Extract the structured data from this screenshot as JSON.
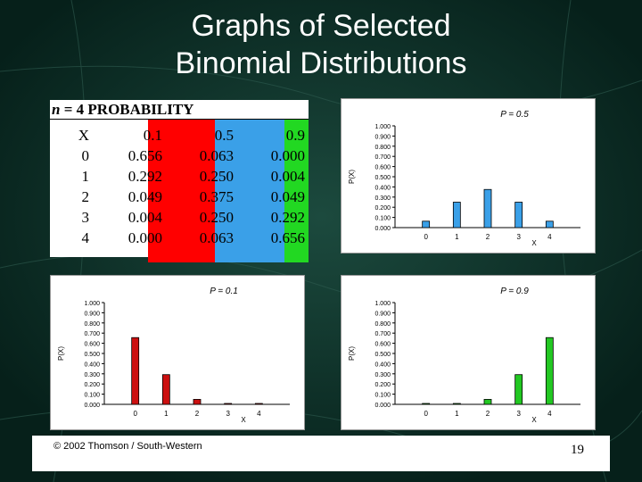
{
  "slide": {
    "title_line1": "Graphs of Selected",
    "title_line2": "Binomial Distributions",
    "footer": "© 2002 Thomson / South-Western",
    "page_number": "19"
  },
  "table": {
    "header_n": "n",
    "header_rest": " = 4 PROBABILITY",
    "columns": [
      "X",
      "0.1",
      "0.5",
      "0.9"
    ],
    "rows": [
      [
        "0",
        "0.656",
        "0.063",
        "0.000"
      ],
      [
        "1",
        "0.292",
        "0.250",
        "0.004"
      ],
      [
        "2",
        "0.049",
        "0.375",
        "0.049"
      ],
      [
        "3",
        "0.004",
        "0.250",
        "0.292"
      ],
      [
        "4",
        "0.000",
        "0.063",
        "0.656"
      ]
    ],
    "band_colors": [
      "#ff0000",
      "#3aa0e8",
      "#22d822"
    ]
  },
  "chart_data": [
    {
      "type": "bar",
      "title": "P = 0.5",
      "xlabel": "X",
      "ylabel": "P(X)",
      "categories": [
        "0",
        "1",
        "2",
        "3",
        "4"
      ],
      "values": [
        0.063,
        0.25,
        0.375,
        0.25,
        0.063
      ],
      "ylim": [
        0,
        1
      ],
      "yticks": [
        "0.000",
        "0.100",
        "0.200",
        "0.300",
        "0.400",
        "0.500",
        "0.600",
        "0.700",
        "0.800",
        "0.900",
        "1.000"
      ],
      "color": "#3aa0e8"
    },
    {
      "type": "bar",
      "title": "P = 0.1",
      "xlabel": "X",
      "ylabel": "P(X)",
      "categories": [
        "0",
        "1",
        "2",
        "3",
        "4"
      ],
      "values": [
        0.656,
        0.292,
        0.049,
        0.004,
        0.0
      ],
      "ylim": [
        0,
        1
      ],
      "yticks": [
        "0.000",
        "0.100",
        "0.200",
        "0.300",
        "0.400",
        "0.500",
        "0.600",
        "0.700",
        "0.800",
        "0.900",
        "1.000"
      ],
      "color": "#cc1010"
    },
    {
      "type": "bar",
      "title": "P = 0.9",
      "xlabel": "X",
      "ylabel": "P(X)",
      "categories": [
        "0",
        "1",
        "2",
        "3",
        "4"
      ],
      "values": [
        0.0,
        0.004,
        0.049,
        0.292,
        0.656
      ],
      "ylim": [
        0,
        1
      ],
      "yticks": [
        "0.000",
        "0.100",
        "0.200",
        "0.300",
        "0.400",
        "0.500",
        "0.600",
        "0.700",
        "0.800",
        "0.900",
        "1.000"
      ],
      "color": "#22c822"
    }
  ]
}
